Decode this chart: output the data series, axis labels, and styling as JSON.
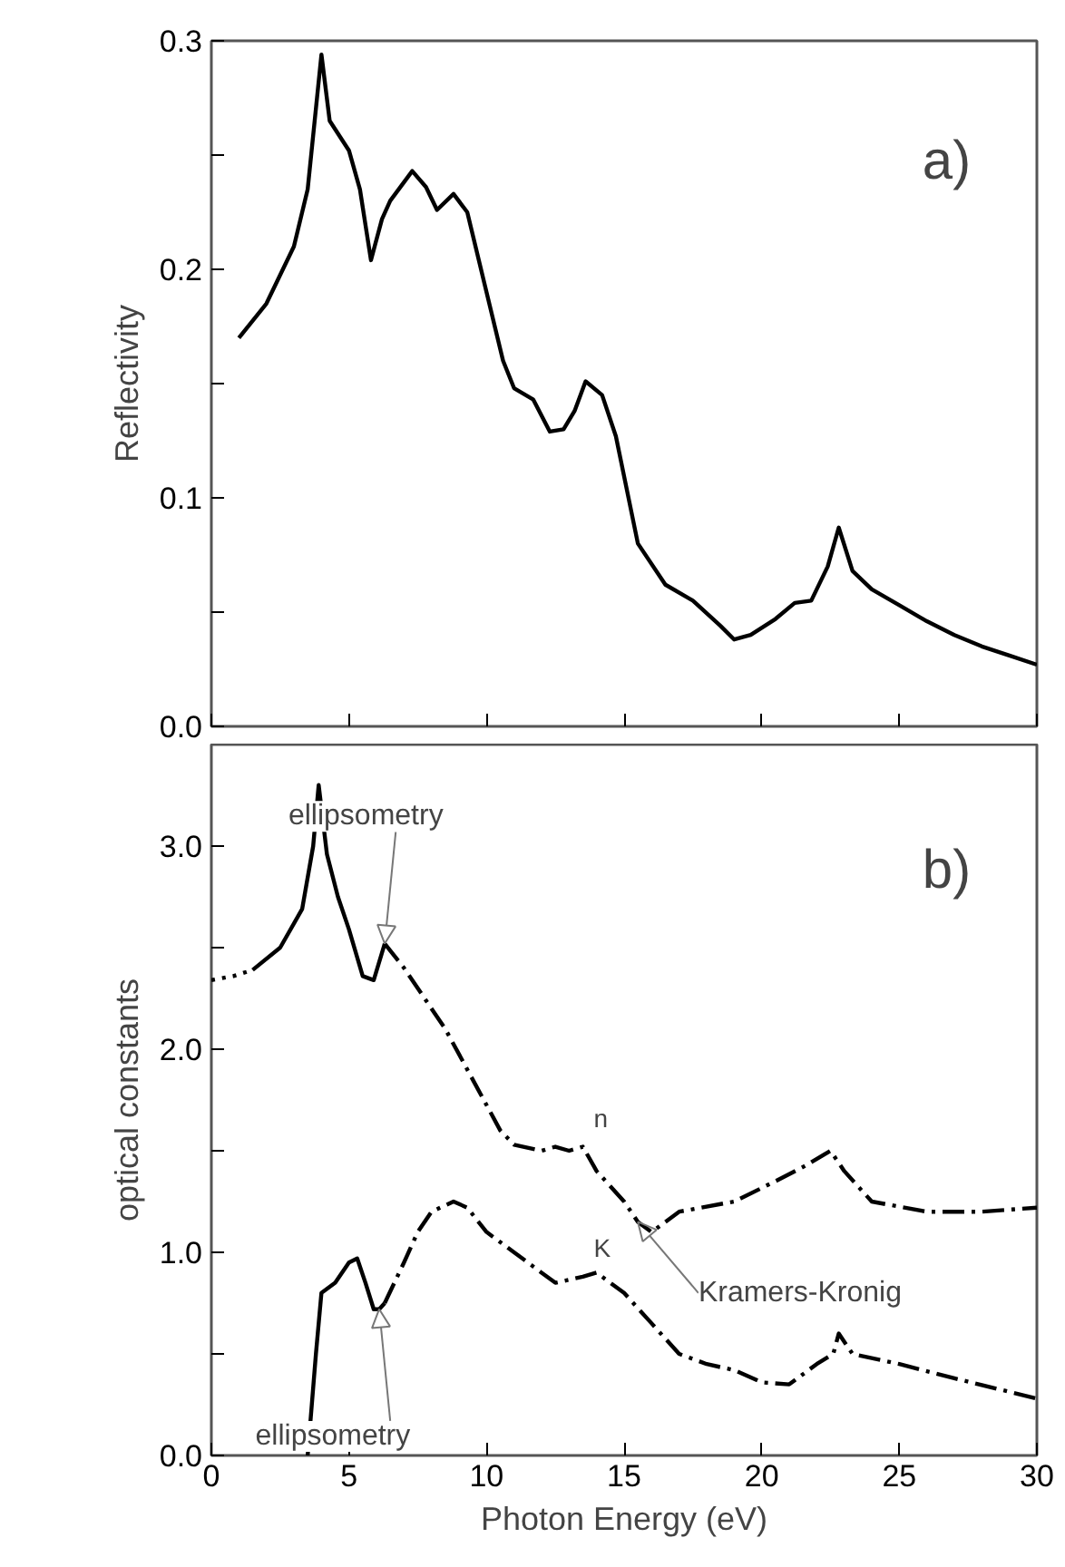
{
  "chart_data": [
    {
      "type": "line",
      "ylabel": "Reflectivity",
      "xlim": [
        0,
        30
      ],
      "ylim": [
        0,
        0.3
      ],
      "xticks": [
        0,
        5,
        10,
        15,
        20,
        25,
        30
      ],
      "yticks": [
        {
          "value": 0,
          "label": "0.0"
        },
        {
          "value": 0.05,
          "label": null
        },
        {
          "value": 0.1,
          "label": "0.1"
        },
        {
          "value": 0.15,
          "label": null
        },
        {
          "value": 0.2,
          "label": "0.2"
        },
        {
          "value": 0.25,
          "label": null
        },
        {
          "value": 0.3,
          "label": "0.3"
        }
      ],
      "tick_labels": "y",
      "grid": false,
      "line_style": "solid",
      "marker": "none",
      "annotations": [
        "a)"
      ],
      "series": [
        {
          "color": "#000000",
          "x": [
            1,
            2,
            3,
            3.5,
            4,
            4.3,
            5,
            5.4,
            5.8,
            6.2,
            6.5,
            7.3,
            7.8,
            8.2,
            8.8,
            9.3,
            10,
            10.6,
            11,
            11.7,
            12.3,
            12.8,
            13.2,
            13.6,
            14.2,
            14.7,
            15.5,
            16.5,
            17.5,
            18.5,
            19,
            19.6,
            20.5,
            21.2,
            21.8,
            22.4,
            22.8,
            23.3,
            24,
            25,
            26,
            27,
            28,
            29,
            30
          ],
          "values": [
            0.17,
            0.185,
            0.21,
            0.235,
            0.294,
            0.265,
            0.252,
            0.235,
            0.204,
            0.222,
            0.23,
            0.243,
            0.236,
            0.226,
            0.233,
            0.225,
            0.19,
            0.16,
            0.148,
            0.143,
            0.129,
            0.13,
            0.138,
            0.151,
            0.145,
            0.127,
            0.08,
            0.062,
            0.055,
            0.044,
            0.038,
            0.04,
            0.047,
            0.054,
            0.055,
            0.07,
            0.087,
            0.068,
            0.06,
            0.053,
            0.046,
            0.04,
            0.035,
            0.031,
            0.027
          ]
        }
      ]
    },
    {
      "type": "line",
      "xlabel": "Photon Energy (eV)",
      "ylabel": "optical constants",
      "xlim": [
        0,
        30
      ],
      "ylim": [
        0,
        3.5
      ],
      "xticks": [
        0,
        5,
        10,
        15,
        20,
        25,
        30
      ],
      "yticks": [
        {
          "value": 0,
          "label": "0.0"
        },
        {
          "value": 0.5,
          "label": null
        },
        {
          "value": 1,
          "label": "1.0"
        },
        {
          "value": 1.5,
          "label": null
        },
        {
          "value": 2,
          "label": "2.0"
        },
        {
          "value": 2.5,
          "label": null
        },
        {
          "value": 3,
          "label": "3.0"
        }
      ],
      "grid": false,
      "marker": "none",
      "annotations": [
        "b)",
        {
          "text": "ellipsometry",
          "x": 6.3,
          "y": 2.52
        },
        {
          "text": "Kramers-Kronig",
          "x": 15.5,
          "y": 1.15
        },
        {
          "text": "ellipsometry",
          "x": 6.1,
          "y": 0.72
        }
      ],
      "series": [
        {
          "color": "#000000",
          "line_style": "dotted",
          "x": [
            0,
            0.8,
            1.5
          ],
          "values": [
            2.34,
            2.36,
            2.39
          ]
        },
        {
          "color": "#000000",
          "line_style": "solid",
          "x": [
            1.5,
            2.5,
            3.3,
            3.7,
            3.9,
            4.2,
            4.6,
            5,
            5.5,
            5.9,
            6.3
          ],
          "values": [
            2.39,
            2.5,
            2.69,
            3.0,
            3.3,
            2.96,
            2.75,
            2.59,
            2.36,
            2.34,
            2.52
          ]
        },
        {
          "name": "n",
          "color": "#000000",
          "line_style": "dashdot",
          "x": [
            6.3,
            7,
            7.5,
            8.5,
            9.5,
            10.5,
            11,
            12,
            12.5,
            13,
            13.5,
            14,
            15,
            15.5,
            16,
            17,
            19,
            20.5,
            21.5,
            22.5,
            23,
            24,
            26,
            28,
            30
          ],
          "values": [
            2.52,
            2.4,
            2.3,
            2.1,
            1.85,
            1.6,
            1.53,
            1.5,
            1.52,
            1.5,
            1.52,
            1.4,
            1.25,
            1.15,
            1.1,
            1.2,
            1.25,
            1.35,
            1.42,
            1.5,
            1.4,
            1.25,
            1.2,
            1.2,
            1.22
          ]
        },
        {
          "color": "#000000",
          "line_style": "solid",
          "x": [
            3.5,
            3.8,
            4,
            4.5,
            5,
            5.3,
            5.6,
            5.9,
            6.1,
            6.3
          ],
          "values": [
            0,
            0.5,
            0.8,
            0.85,
            0.95,
            0.97,
            0.85,
            0.72,
            0.72,
            0.75
          ]
        },
        {
          "name": "K",
          "color": "#000000",
          "line_style": "dashdot",
          "x": [
            6.3,
            7,
            7.5,
            8,
            8.8,
            9.3,
            10,
            10.5,
            11,
            12,
            12.5,
            13.5,
            14,
            15,
            16,
            17,
            18,
            19,
            20,
            21,
            22,
            22.6,
            22.8,
            23.3,
            25,
            27,
            30
          ],
          "values": [
            0.75,
            0.95,
            1.1,
            1.2,
            1.25,
            1.22,
            1.1,
            1.05,
            1.0,
            0.9,
            0.85,
            0.88,
            0.9,
            0.8,
            0.65,
            0.5,
            0.45,
            0.42,
            0.36,
            0.35,
            0.45,
            0.5,
            0.6,
            0.5,
            0.45,
            0.38,
            0.28
          ]
        }
      ]
    }
  ]
}
